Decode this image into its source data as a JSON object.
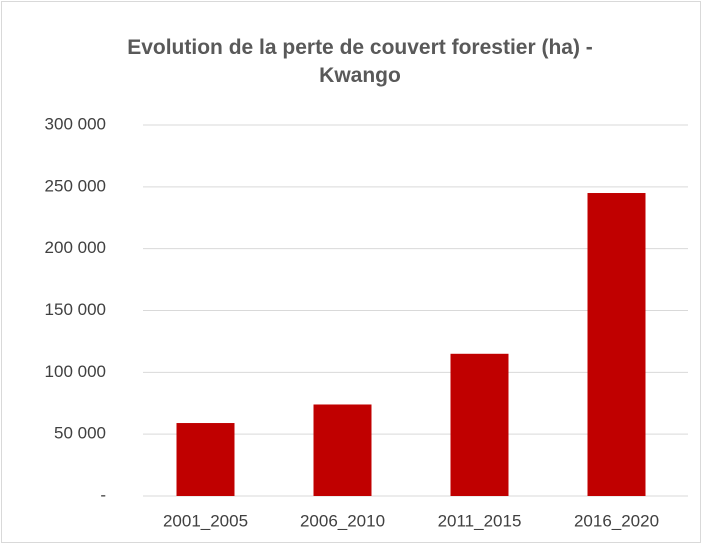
{
  "chart_data": {
    "type": "bar",
    "title": "Evolution de la perte de couvert forestier (ha) - Kwango",
    "categories": [
      "2001_2005",
      "2006_2010",
      "2011_2015",
      "2016_2020"
    ],
    "values": [
      59000,
      74000,
      115000,
      245000
    ],
    "color": "#c00000",
    "ylim": [
      0,
      300000
    ],
    "yticks": [
      {
        "value": 0,
        "label": "-"
      },
      {
        "value": 50000,
        "label": "50 000"
      },
      {
        "value": 100000,
        "label": "100 000"
      },
      {
        "value": 150000,
        "label": "150 000"
      },
      {
        "value": 200000,
        "label": "200 000"
      },
      {
        "value": 250000,
        "label": "250 000"
      },
      {
        "value": 300000,
        "label": "300 000"
      }
    ],
    "grid": true
  }
}
